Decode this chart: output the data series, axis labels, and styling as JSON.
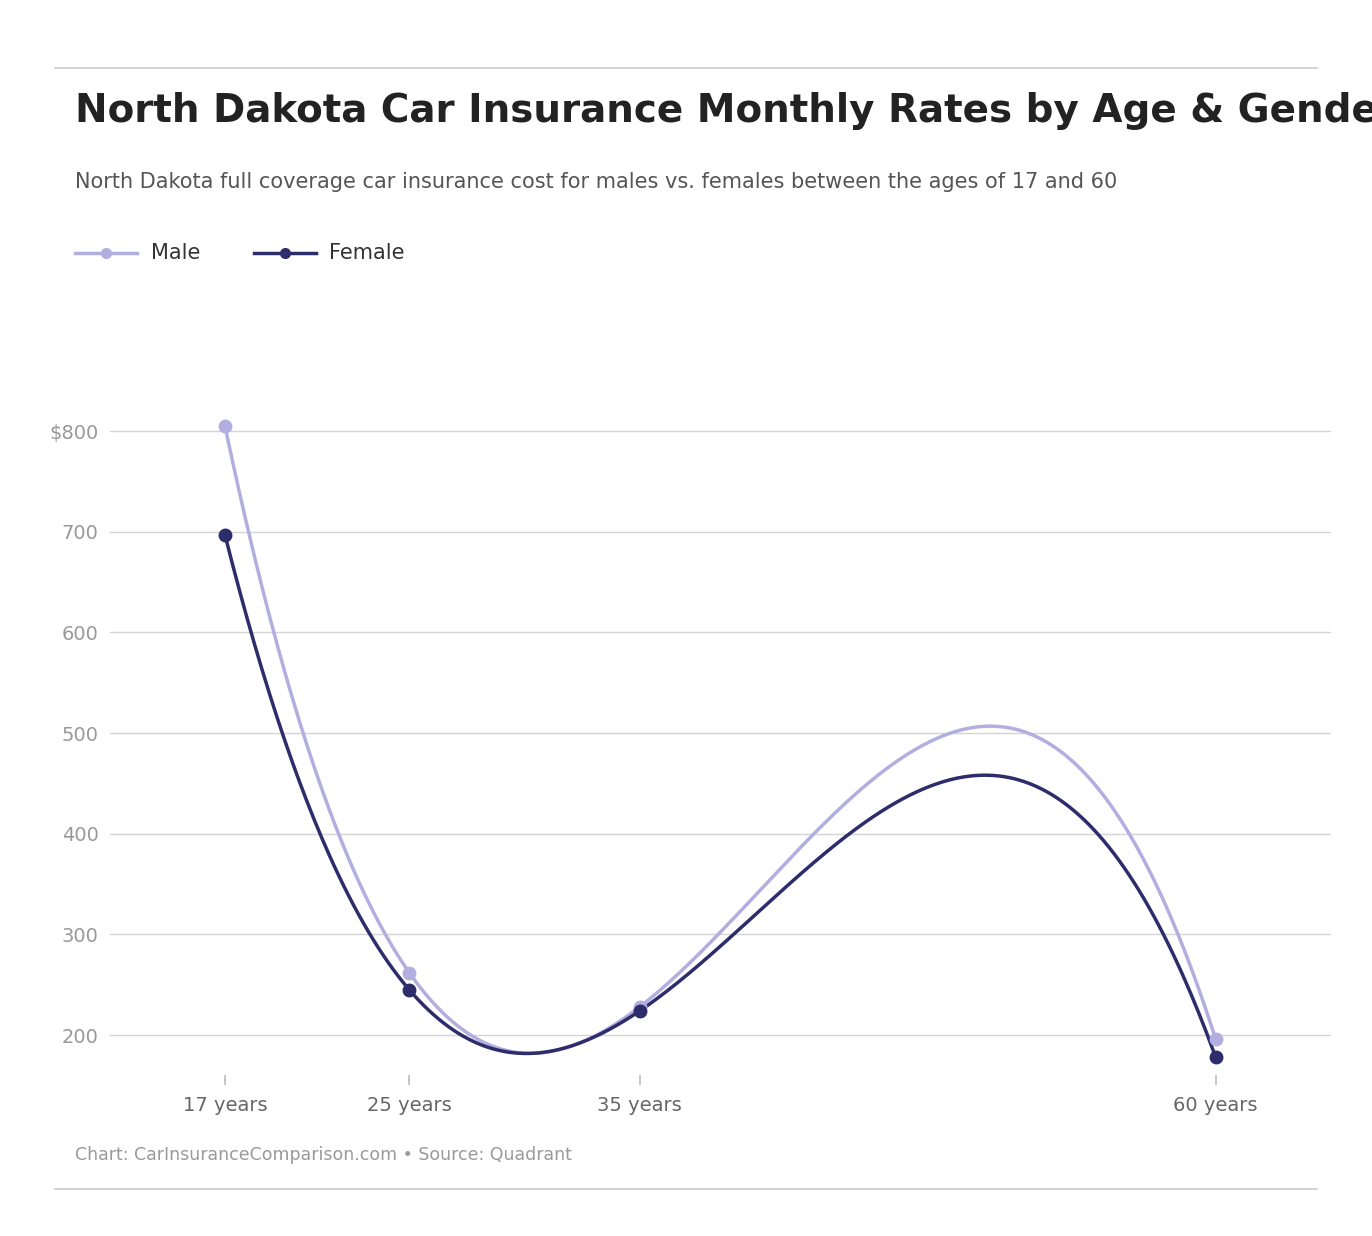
{
  "title": "North Dakota Car Insurance Monthly Rates by Age & Gender",
  "subtitle": "North Dakota full coverage car insurance cost for males vs. females between the ages of 17 and 60",
  "footer": "Chart: CarInsuranceComparison.com • Source: Quadrant",
  "x_labels": [
    "17 years",
    "25 years",
    "35 years",
    "60 years"
  ],
  "x_values": [
    17,
    25,
    35,
    60
  ],
  "male_values": [
    805,
    262,
    228,
    196
  ],
  "female_values": [
    697,
    245,
    224,
    178
  ],
  "male_color": "#b3aee0",
  "female_color": "#2e2d6b",
  "male_label": "Male",
  "female_label": "Female",
  "yticks": [
    200,
    300,
    400,
    500,
    600,
    700,
    800
  ],
  "ylim": [
    160,
    860
  ],
  "xlim": [
    12,
    65
  ],
  "background_color": "#ffffff",
  "grid_color": "#d4d4d4",
  "title_fontsize": 28,
  "subtitle_fontsize": 15,
  "tick_fontsize": 14,
  "legend_fontsize": 15,
  "footer_fontsize": 12.5
}
